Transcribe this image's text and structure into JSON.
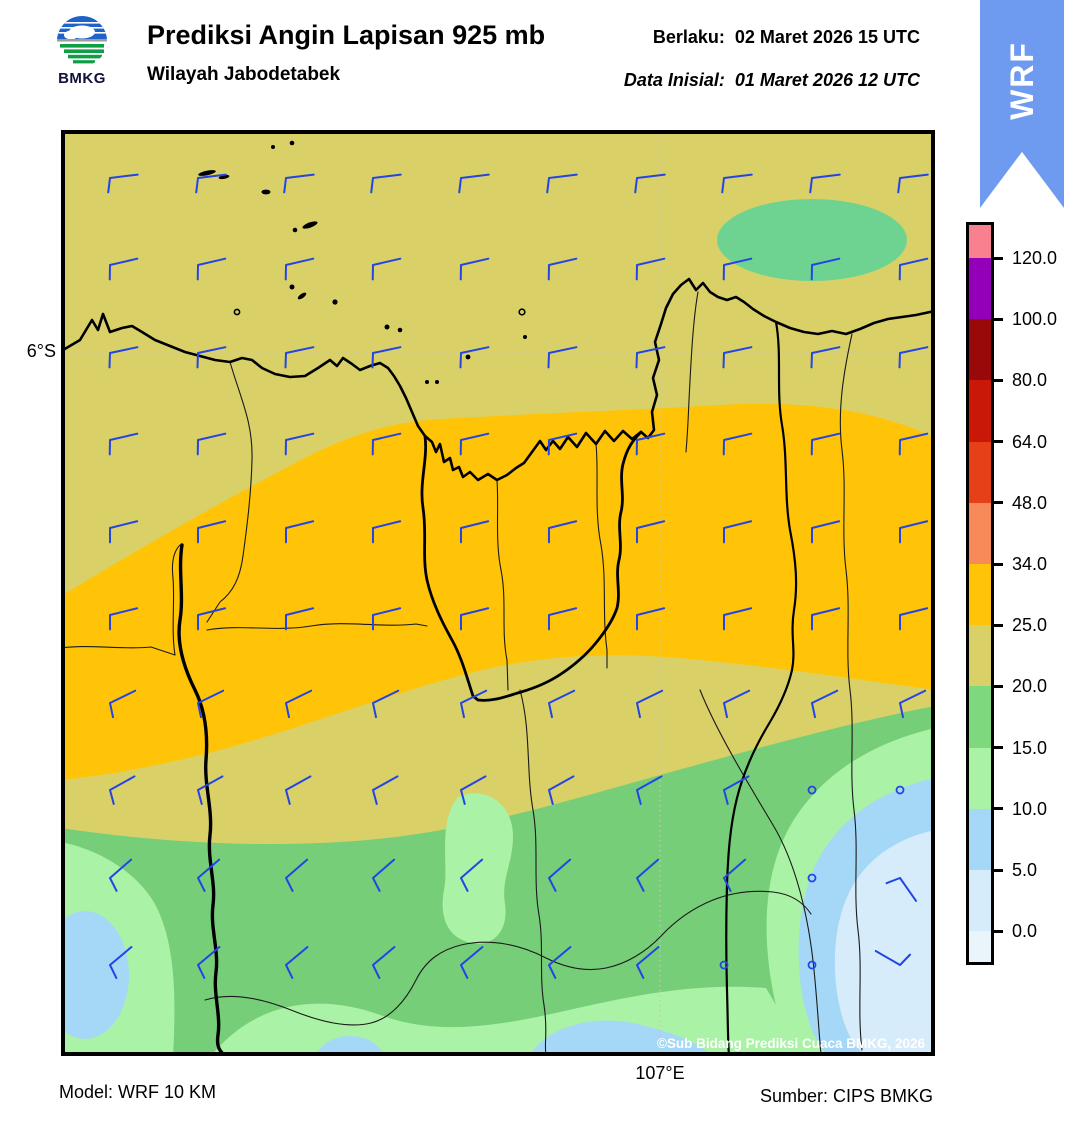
{
  "header": {
    "logo_text": "BMKG",
    "title": "Prediksi Angin Lapisan 925 mb",
    "subtitle": "Wilayah Jabodetabek",
    "valid_label": "Berlaku:",
    "valid_value": "02 Maret 2026 15 UTC",
    "initial_label": "Data Inisial:",
    "initial_value": "01 Maret 2026 12 UTC",
    "ribbon_text": "WRF"
  },
  "map": {
    "lat_label": "6°S",
    "lon_label": "107°E",
    "copyright": "©Sub Bidang Prediksi Cuaca BMKG, 2026"
  },
  "footer": {
    "model_label": "Model: WRF 10 KM",
    "source_label": "Sumber: CIPS BMKG"
  },
  "colorbar": {
    "tick_labels": [
      "120.0",
      "100.0",
      "80.0",
      "64.0",
      "48.0",
      "34.0",
      "25.0",
      "20.0",
      "15.0",
      "10.0",
      "5.0",
      "0.0"
    ],
    "segment_colors": [
      "#f9808f",
      "#9400b9",
      "#9a090a",
      "#c91808",
      "#e54018",
      "#f88958",
      "#ffc408",
      "#d9d168",
      "#7ed87e",
      "#aaf2a6",
      "#a5d8f6",
      "#d7ecfa",
      "#e9f4fb"
    ]
  },
  "colors": {
    "khaki": "#d9d168",
    "gold": "#ffc408",
    "green": "#76ce78",
    "green_oval": "#6ed391",
    "light_green": "#aaf2a6",
    "light_blue": "#a5d8f6",
    "pale_blue": "#d7ecfa",
    "ribbon": "#6e9af0",
    "barb": "#2345e5"
  }
}
